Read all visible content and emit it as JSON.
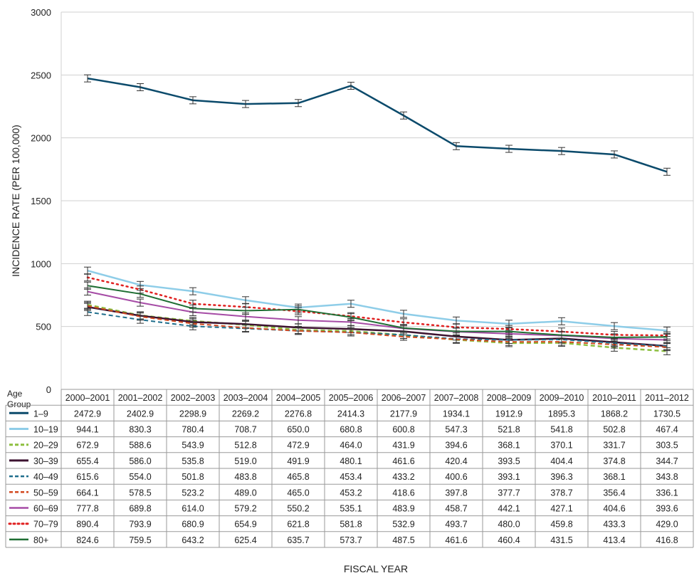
{
  "chart_data": {
    "type": "line",
    "title": "",
    "xlabel": "FISCAL YEAR",
    "ylabel": "INCIDENCE RATE (PER 100,000)",
    "ylim": [
      0,
      3000
    ],
    "yticks": [
      "0",
      "500",
      "1000",
      "1500",
      "2000",
      "2500",
      "3000"
    ],
    "grid": true,
    "legend_title": "Age Group",
    "categories": [
      "2000–2001",
      "2001–2002",
      "2002–2003",
      "2003–2004",
      "2004–2005",
      "2005–2006",
      "2006–2007",
      "2007–2008",
      "2008–2009",
      "2009–2010",
      "2010–2011",
      "2011–2012"
    ],
    "series": [
      {
        "name": "1–9",
        "color": "#0b4a6b",
        "dash": "solid",
        "width": 2.5,
        "values": [
          2472.9,
          2402.9,
          2298.9,
          2269.2,
          2276.8,
          2414.3,
          2177.9,
          1934.1,
          1912.9,
          1895.3,
          1868.2,
          1730.5
        ],
        "labels": [
          "2472.9",
          "2402.9",
          "2298.9",
          "2269.2",
          "2276.8",
          "2414.3",
          "2177.9",
          "1934.1",
          "1912.9",
          "1895.3",
          "1868.2",
          "1730.5"
        ]
      },
      {
        "name": "10–19",
        "color": "#8ecde8",
        "dash": "solid",
        "width": 2.5,
        "values": [
          944.1,
          830.3,
          780.4,
          708.7,
          650.0,
          680.8,
          600.8,
          547.3,
          521.8,
          541.8,
          502.8,
          467.4
        ],
        "labels": [
          "944.1",
          "830.3",
          "780.4",
          "708.7",
          "650.0",
          "680.8",
          "600.8",
          "547.3",
          "521.8",
          "541.8",
          "502.8",
          "467.4"
        ]
      },
      {
        "name": "20–29",
        "color": "#8dbf3f",
        "dash": "dash",
        "width": 2.5,
        "values": [
          672.9,
          588.6,
          543.9,
          512.8,
          472.9,
          464.0,
          431.9,
          394.6,
          368.1,
          370.1,
          331.7,
          303.5
        ],
        "labels": [
          "672.9",
          "588.6",
          "543.9",
          "512.8",
          "472.9",
          "464.0",
          "431.9",
          "394.6",
          "368.1",
          "370.1",
          "331.7",
          "303.5"
        ]
      },
      {
        "name": "30–39",
        "color": "#3d1330",
        "dash": "solid",
        "width": 2.5,
        "values": [
          655.4,
          586.0,
          535.8,
          519.0,
          491.9,
          480.1,
          461.6,
          420.4,
          393.5,
          404.4,
          374.8,
          344.7
        ],
        "labels": [
          "655.4",
          "586.0",
          "535.8",
          "519.0",
          "491.9",
          "480.1",
          "461.6",
          "420.4",
          "393.5",
          "404.4",
          "374.8",
          "344.7"
        ]
      },
      {
        "name": "40–49",
        "color": "#1f6e8c",
        "dash": "dash",
        "width": 2,
        "values": [
          615.6,
          554.0,
          501.8,
          483.8,
          465.8,
          453.4,
          433.2,
          400.6,
          393.1,
          396.3,
          368.1,
          343.8
        ],
        "labels": [
          "615.6",
          "554.0",
          "501.8",
          "483.8",
          "465.8",
          "453.4",
          "433.2",
          "400.6",
          "393.1",
          "396.3",
          "368.1",
          "343.8"
        ]
      },
      {
        "name": "50–59",
        "color": "#d2491f",
        "dash": "dash",
        "width": 2,
        "values": [
          664.1,
          578.5,
          523.2,
          489.0,
          465.0,
          453.2,
          418.6,
          397.8,
          377.7,
          378.7,
          356.4,
          336.1
        ],
        "labels": [
          "664.1",
          "578.5",
          "523.2",
          "489.0",
          "465.0",
          "453.2",
          "418.6",
          "397.8",
          "377.7",
          "378.7",
          "356.4",
          "336.1"
        ]
      },
      {
        "name": "60–69",
        "color": "#a64ca6",
        "dash": "solid",
        "width": 2,
        "values": [
          777.8,
          689.8,
          614.0,
          579.2,
          550.2,
          535.1,
          483.9,
          458.7,
          442.1,
          427.1,
          404.6,
          393.6
        ],
        "labels": [
          "777.8",
          "689.8",
          "614.0",
          "579.2",
          "550.2",
          "535.1",
          "483.9",
          "458.7",
          "442.1",
          "427.1",
          "404.6",
          "393.6"
        ]
      },
      {
        "name": "70–79",
        "color": "#e02020",
        "dash": "dot",
        "width": 2.5,
        "values": [
          890.4,
          793.9,
          680.9,
          654.9,
          621.8,
          581.8,
          532.9,
          493.7,
          480.0,
          459.8,
          433.3,
          429.0
        ],
        "labels": [
          "890.4",
          "793.9",
          "680.9",
          "654.9",
          "621.8",
          "581.8",
          "532.9",
          "493.7",
          "480.0",
          "459.8",
          "433.3",
          "429.0"
        ]
      },
      {
        "name": "80+",
        "color": "#1e6e33",
        "dash": "solid",
        "width": 2,
        "values": [
          824.6,
          759.5,
          643.2,
          625.4,
          635.7,
          573.7,
          487.5,
          461.6,
          460.4,
          431.5,
          413.4,
          416.8
        ],
        "labels": [
          "824.6",
          "759.5",
          "643.2",
          "625.4",
          "635.7",
          "573.7",
          "487.5",
          "461.6",
          "460.4",
          "431.5",
          "413.4",
          "416.8"
        ]
      }
    ]
  }
}
